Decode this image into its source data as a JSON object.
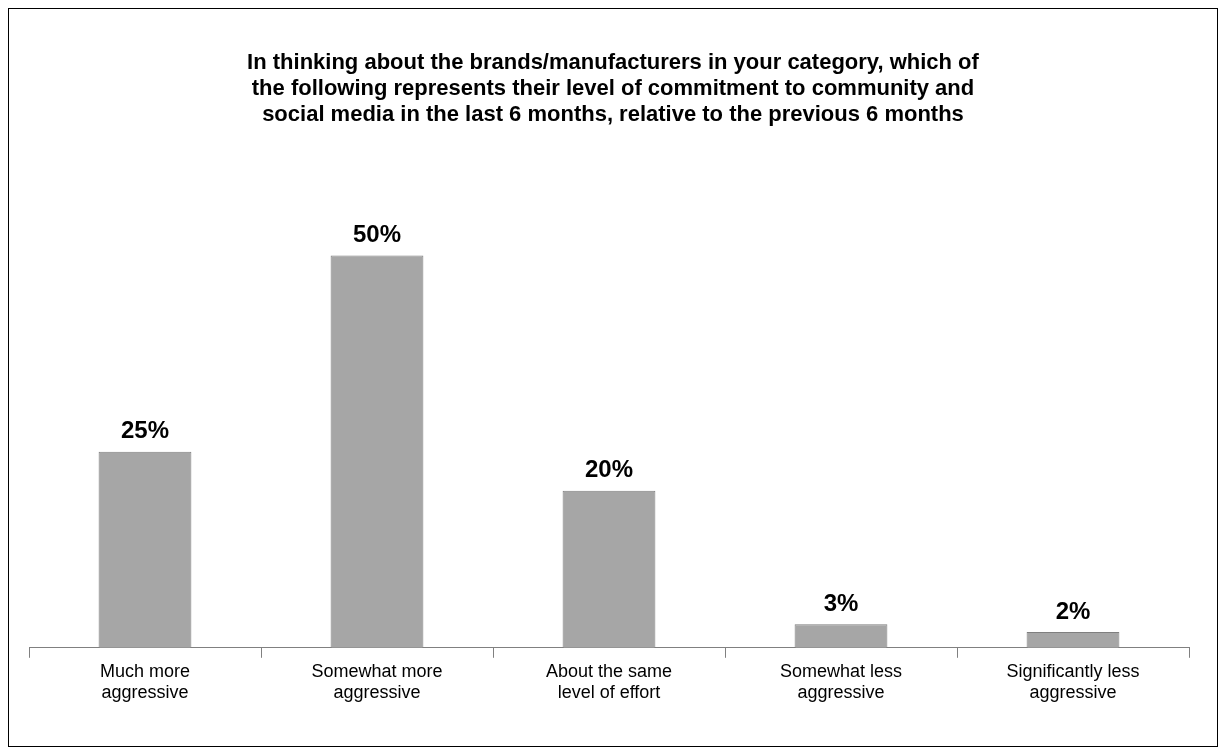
{
  "chart_data": {
    "type": "bar",
    "title": "In thinking about the brands/manufacturers in your category, which of the following represents their level of commitment to community and social media in the last 6 months, relative to the previous 6 months",
    "categories": [
      "Much more aggressive",
      "Somewhat more aggressive",
      "About the same level of effort",
      "Somewhat less aggressive",
      "Significantly less aggressive"
    ],
    "values": [
      25,
      50,
      20,
      3,
      2
    ],
    "value_labels": [
      "25%",
      "50%",
      "20%",
      "3%",
      "2%"
    ],
    "color": "#a6a6a6"
  }
}
